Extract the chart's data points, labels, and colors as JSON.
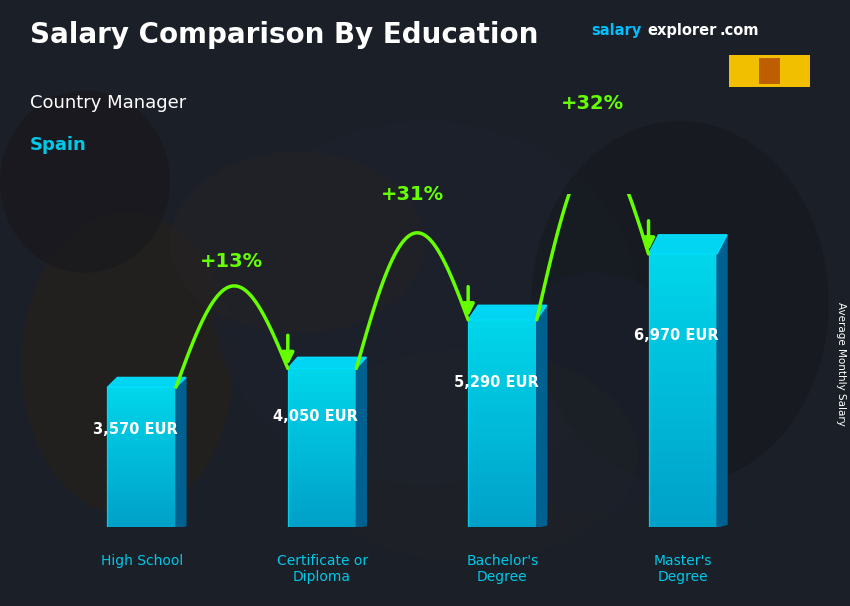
{
  "title": "Salary Comparison By Education",
  "subtitle": "Country Manager",
  "country": "Spain",
  "categories": [
    "High School",
    "Certificate or\nDiploma",
    "Bachelor's\nDegree",
    "Master's\nDegree"
  ],
  "values": [
    3570,
    4050,
    5290,
    6970
  ],
  "value_labels": [
    "3,570 EUR",
    "4,050 EUR",
    "5,290 EUR",
    "6,970 EUR"
  ],
  "pct_labels": [
    "+13%",
    "+31%",
    "+32%"
  ],
  "bar_color_face": "#00c8e8",
  "bar_color_side": "#0077aa",
  "bar_color_top": "#00e8ff",
  "bg_dark": "#1a1f2e",
  "title_color": "#ffffff",
  "subtitle_color": "#ffffff",
  "country_color": "#00c8e8",
  "value_label_color": "#ffffff",
  "pct_color": "#66ff00",
  "arrow_color": "#66ff00",
  "xlabel_color": "#00c8e8",
  "ylabel_text": "Average Monthly Salary",
  "watermark_salary": "salary",
  "watermark_explorer": "explorer",
  "watermark_com": ".com",
  "watermark_color_salary": "#00bfff",
  "watermark_color_explorer": "#ffffff",
  "watermark_color_com": "#ffffff",
  "figsize": [
    8.5,
    6.06
  ],
  "dpi": 100,
  "pct_arcs": [
    {
      "pct": "+13%",
      "from_bar": 0,
      "to_bar": 1,
      "from_val": 3570,
      "to_val": 4050
    },
    {
      "pct": "+31%",
      "from_bar": 1,
      "to_bar": 2,
      "from_val": 4050,
      "to_val": 5290
    },
    {
      "pct": "+32%",
      "from_bar": 2,
      "to_bar": 3,
      "from_val": 5290,
      "to_val": 6970
    }
  ]
}
